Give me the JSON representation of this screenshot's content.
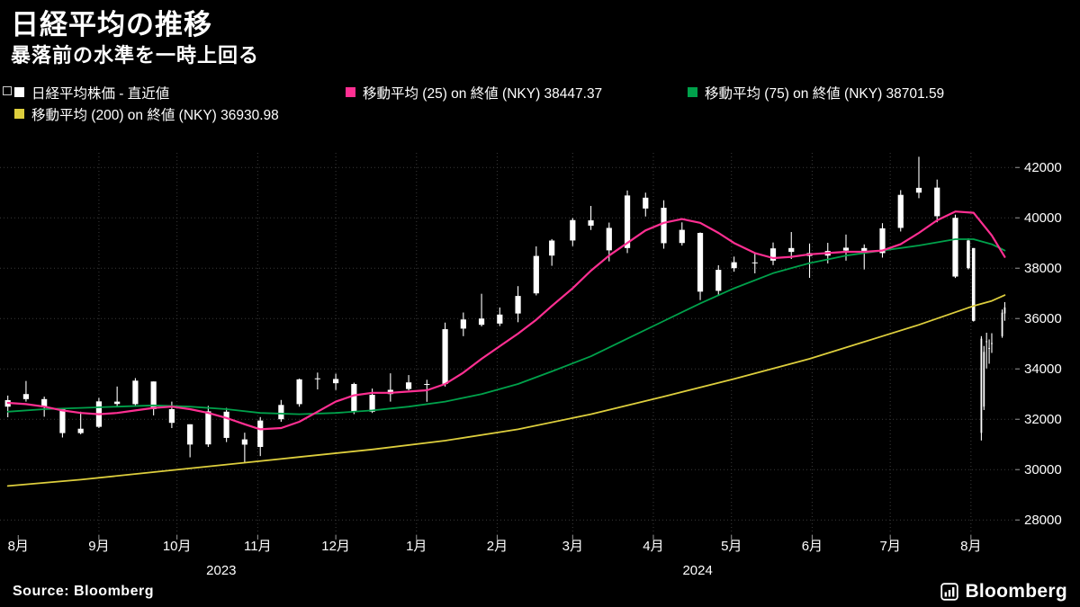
{
  "header": {
    "title": "日経平均の推移",
    "subtitle": "暴落前の水準を一時上回る"
  },
  "legend": {
    "items": [
      {
        "label": "日経平均株価 - 直近値",
        "color": "#ffffff"
      },
      {
        "label": "移動平均 (25)  on 終値 (NKY) 38447.37",
        "color": "#ff2f92"
      },
      {
        "label": "移動平均 (75)  on 終値 (NKY) 38701.59",
        "color": "#00a14b"
      },
      {
        "label": "移動平均 (200)  on 終値 (NKY) 36930.98",
        "color": "#ddce3d"
      }
    ]
  },
  "footer": {
    "source": "Source: Bloomberg",
    "brand": "Bloomberg"
  },
  "chart_data": {
    "type": "candlestick",
    "title": "日経平均の推移",
    "subtitle": "暴落前の水準を一時上回る",
    "instrument": "NKY",
    "candle_color": "#ffffff",
    "grid": true,
    "legend_position": "top",
    "ylim": [
      27400,
      42580
    ],
    "yticks": [
      28000,
      30000,
      32000,
      34000,
      36000,
      38000,
      40000,
      42000
    ],
    "x_range": [
      "2023-07-25",
      "2024-08-18"
    ],
    "month_ticks": [
      {
        "label": "8月",
        "date": "2023-08-01"
      },
      {
        "label": "9月",
        "date": "2023-09-01"
      },
      {
        "label": "10月",
        "date": "2023-10-01"
      },
      {
        "label": "11月",
        "date": "2023-11-01"
      },
      {
        "label": "12月",
        "date": "2023-12-01"
      },
      {
        "label": "1月",
        "date": "2024-01-01"
      },
      {
        "label": "2月",
        "date": "2024-02-01"
      },
      {
        "label": "3月",
        "date": "2024-03-01"
      },
      {
        "label": "4月",
        "date": "2024-04-01"
      },
      {
        "label": "5月",
        "date": "2024-05-01"
      },
      {
        "label": "6月",
        "date": "2024-06-01"
      },
      {
        "label": "7月",
        "date": "2024-07-01"
      },
      {
        "label": "8月",
        "date": "2024-08-01"
      }
    ],
    "year_labels": [
      {
        "label": "2023",
        "date": "2023-10-18"
      },
      {
        "label": "2024",
        "date": "2024-04-18"
      }
    ],
    "candles": [
      [
        "2023-07-28",
        32500,
        32940,
        32080,
        32759
      ],
      [
        "2023-08-04",
        33000,
        33520,
        32700,
        32800
      ],
      [
        "2023-08-11",
        32800,
        32900,
        32100,
        32473
      ],
      [
        "2023-08-18",
        32400,
        32450,
        31275,
        31450
      ],
      [
        "2023-08-25",
        31450,
        32300,
        31400,
        31624
      ],
      [
        "2023-09-01",
        31700,
        32850,
        31650,
        32710
      ],
      [
        "2023-09-08",
        32700,
        33300,
        32500,
        32606
      ],
      [
        "2023-09-15",
        32600,
        33634,
        32500,
        33533
      ],
      [
        "2023-09-22",
        33500,
        33500,
        32154,
        32402
      ],
      [
        "2023-09-29",
        32400,
        32700,
        31650,
        31857
      ],
      [
        "2023-10-06",
        31800,
        31800,
        30488,
        30995
      ],
      [
        "2023-10-13",
        31000,
        32533,
        30900,
        32315
      ],
      [
        "2023-10-20",
        32300,
        32450,
        31093,
        31259
      ],
      [
        "2023-10-27",
        31200,
        31466,
        30269,
        30991
      ],
      [
        "2023-11-02",
        30900,
        32087,
        30538,
        31949
      ],
      [
        "2023-11-10",
        32000,
        32766,
        31900,
        32568
      ],
      [
        "2023-11-17",
        32600,
        33614,
        32499,
        33585
      ],
      [
        "2023-11-24",
        33600,
        33853,
        33184,
        33625
      ],
      [
        "2023-12-01",
        33600,
        33811,
        33161,
        33431
      ],
      [
        "2023-12-08",
        33400,
        33452,
        32205,
        32308
      ],
      [
        "2023-12-15",
        32300,
        33219,
        32250,
        32970
      ],
      [
        "2023-12-22",
        33000,
        33824,
        32700,
        33169
      ],
      [
        "2023-12-29",
        33200,
        33755,
        33150,
        33464
      ],
      [
        "2024-01-05",
        33400,
        33568,
        32693,
        33377
      ],
      [
        "2024-01-12",
        33400,
        35839,
        33300,
        35577
      ],
      [
        "2024-01-19",
        35600,
        36239,
        35300,
        35963
      ],
      [
        "2024-01-26",
        36000,
        36984,
        35687,
        35751
      ],
      [
        "2024-02-02",
        35800,
        36440,
        35700,
        36158
      ],
      [
        "2024-02-09",
        36200,
        37287,
        35854,
        36897
      ],
      [
        "2024-02-16",
        37000,
        38865,
        36920,
        38487
      ],
      [
        "2024-02-22",
        38500,
        39156,
        38095,
        39098
      ],
      [
        "2024-03-01",
        39100,
        39990,
        38876,
        39910
      ],
      [
        "2024-03-08",
        39900,
        40472,
        39518,
        39689
      ],
      [
        "2024-03-15",
        39600,
        39811,
        38271,
        38708
      ],
      [
        "2024-03-22",
        38800,
        41087,
        38600,
        40888
      ],
      [
        "2024-03-29",
        40800,
        41000,
        40054,
        40369
      ],
      [
        "2024-04-05",
        40400,
        40697,
        38774,
        38992
      ],
      [
        "2024-04-12",
        39000,
        39820,
        38900,
        39523
      ],
      [
        "2024-04-19",
        39400,
        39420,
        36733,
        37068
      ],
      [
        "2024-04-26",
        37100,
        38116,
        36925,
        37934
      ],
      [
        "2024-05-02",
        38000,
        38460,
        37860,
        38236
      ],
      [
        "2024-05-10",
        38200,
        38603,
        37795,
        38229
      ],
      [
        "2024-05-17",
        38300,
        39020,
        38122,
        38787
      ],
      [
        "2024-05-24",
        38800,
        39437,
        38366,
        38646
      ],
      [
        "2024-05-31",
        38600,
        38980,
        37617,
        38487
      ],
      [
        "2024-06-07",
        38500,
        39007,
        38189,
        38683
      ],
      [
        "2024-06-14",
        38700,
        39336,
        38300,
        38814
      ],
      [
        "2024-06-21",
        38800,
        38945,
        37950,
        38596
      ],
      [
        "2024-06-28",
        38600,
        39788,
        38420,
        39583
      ],
      [
        "2024-07-05",
        39600,
        41100,
        39457,
        40912
      ],
      [
        "2024-07-12",
        41000,
        42426,
        40780,
        41190
      ],
      [
        "2024-07-19",
        41200,
        41520,
        39824,
        40064
      ],
      [
        "2024-07-26",
        40000,
        40126,
        37611,
        37667
      ],
      [
        "2024-07-31",
        38000,
        39188,
        37954,
        39101
      ],
      [
        "2024-08-02",
        38800,
        38800,
        35880,
        35909
      ],
      [
        "2024-08-05",
        35200,
        35301,
        31156,
        31458
      ],
      [
        "2024-08-06",
        32500,
        34911,
        32366,
        34675
      ],
      [
        "2024-08-07",
        35100,
        35437,
        34017,
        35090
      ],
      [
        "2024-08-08",
        34800,
        35171,
        34205,
        34831
      ],
      [
        "2024-08-09",
        35000,
        35417,
        34635,
        35025
      ],
      [
        "2024-08-13",
        35300,
        36360,
        35236,
        36232
      ],
      [
        "2024-08-14",
        36200,
        36653,
        35912,
        36442
      ]
    ],
    "series": [
      {
        "id": "ma25",
        "name": "移動平均 (25)",
        "color": "#ff2f92",
        "width": 2.2,
        "last_value": 38447.37,
        "points": [
          [
            "2023-07-28",
            32650
          ],
          [
            "2023-08-04",
            32600
          ],
          [
            "2023-08-11",
            32500
          ],
          [
            "2023-08-18",
            32350
          ],
          [
            "2023-08-25",
            32250
          ],
          [
            "2023-09-01",
            32200
          ],
          [
            "2023-09-08",
            32250
          ],
          [
            "2023-09-15",
            32350
          ],
          [
            "2023-09-22",
            32450
          ],
          [
            "2023-09-29",
            32500
          ],
          [
            "2023-10-06",
            32400
          ],
          [
            "2023-10-13",
            32250
          ],
          [
            "2023-10-20",
            32050
          ],
          [
            "2023-10-27",
            31800
          ],
          [
            "2023-11-02",
            31600
          ],
          [
            "2023-11-10",
            31650
          ],
          [
            "2023-11-17",
            31900
          ],
          [
            "2023-11-24",
            32300
          ],
          [
            "2023-12-01",
            32700
          ],
          [
            "2023-12-08",
            32950
          ],
          [
            "2023-12-15",
            33050
          ],
          [
            "2023-12-22",
            33050
          ],
          [
            "2023-12-29",
            33100
          ],
          [
            "2024-01-05",
            33150
          ],
          [
            "2024-01-12",
            33400
          ],
          [
            "2024-01-19",
            33850
          ],
          [
            "2024-01-26",
            34400
          ],
          [
            "2024-02-02",
            34900
          ],
          [
            "2024-02-09",
            35400
          ],
          [
            "2024-02-16",
            35950
          ],
          [
            "2024-02-22",
            36500
          ],
          [
            "2024-03-01",
            37200
          ],
          [
            "2024-03-08",
            37900
          ],
          [
            "2024-03-15",
            38500
          ],
          [
            "2024-03-22",
            39000
          ],
          [
            "2024-03-29",
            39500
          ],
          [
            "2024-04-05",
            39800
          ],
          [
            "2024-04-12",
            39950
          ],
          [
            "2024-04-19",
            39800
          ],
          [
            "2024-04-26",
            39400
          ],
          [
            "2024-05-02",
            39000
          ],
          [
            "2024-05-10",
            38600
          ],
          [
            "2024-05-17",
            38400
          ],
          [
            "2024-05-24",
            38450
          ],
          [
            "2024-05-31",
            38550
          ],
          [
            "2024-06-07",
            38600
          ],
          [
            "2024-06-14",
            38650
          ],
          [
            "2024-06-21",
            38650
          ],
          [
            "2024-06-28",
            38700
          ],
          [
            "2024-07-05",
            38950
          ],
          [
            "2024-07-12",
            39400
          ],
          [
            "2024-07-19",
            39900
          ],
          [
            "2024-07-26",
            40250
          ],
          [
            "2024-08-02",
            40200
          ],
          [
            "2024-08-09",
            39300
          ],
          [
            "2024-08-14",
            38447.37
          ]
        ]
      },
      {
        "id": "ma75",
        "name": "移動平均 (75)",
        "color": "#00a14b",
        "width": 1.8,
        "last_value": 38701.59,
        "points": [
          [
            "2023-07-28",
            32300
          ],
          [
            "2023-08-11",
            32400
          ],
          [
            "2023-08-25",
            32450
          ],
          [
            "2023-09-08",
            32500
          ],
          [
            "2023-09-22",
            32550
          ],
          [
            "2023-10-06",
            32500
          ],
          [
            "2023-10-20",
            32400
          ],
          [
            "2023-11-02",
            32250
          ],
          [
            "2023-11-17",
            32200
          ],
          [
            "2023-12-01",
            32250
          ],
          [
            "2023-12-15",
            32350
          ],
          [
            "2023-12-29",
            32500
          ],
          [
            "2024-01-12",
            32700
          ],
          [
            "2024-01-26",
            33000
          ],
          [
            "2024-02-09",
            33400
          ],
          [
            "2024-02-22",
            33900
          ],
          [
            "2024-03-08",
            34500
          ],
          [
            "2024-03-22",
            35200
          ],
          [
            "2024-04-05",
            35900
          ],
          [
            "2024-04-19",
            36600
          ],
          [
            "2024-05-02",
            37200
          ],
          [
            "2024-05-17",
            37800
          ],
          [
            "2024-05-31",
            38200
          ],
          [
            "2024-06-14",
            38500
          ],
          [
            "2024-06-28",
            38700
          ],
          [
            "2024-07-12",
            38900
          ],
          [
            "2024-07-26",
            39150
          ],
          [
            "2024-08-02",
            39150
          ],
          [
            "2024-08-09",
            38950
          ],
          [
            "2024-08-14",
            38701.59
          ]
        ]
      },
      {
        "id": "ma200",
        "name": "移動平均 (200)",
        "color": "#ddce3d",
        "width": 1.8,
        "last_value": 36930.98,
        "points": [
          [
            "2023-07-28",
            29350
          ],
          [
            "2023-08-25",
            29600
          ],
          [
            "2023-09-22",
            29900
          ],
          [
            "2023-10-20",
            30200
          ],
          [
            "2023-11-17",
            30500
          ],
          [
            "2023-12-15",
            30800
          ],
          [
            "2024-01-12",
            31150
          ],
          [
            "2024-02-09",
            31600
          ],
          [
            "2024-03-08",
            32200
          ],
          [
            "2024-04-05",
            32900
          ],
          [
            "2024-05-02",
            33600
          ],
          [
            "2024-05-31",
            34400
          ],
          [
            "2024-06-28",
            35300
          ],
          [
            "2024-07-12",
            35750
          ],
          [
            "2024-07-26",
            36250
          ],
          [
            "2024-08-02",
            36500
          ],
          [
            "2024-08-09",
            36700
          ],
          [
            "2024-08-14",
            36930.98
          ]
        ]
      }
    ]
  }
}
